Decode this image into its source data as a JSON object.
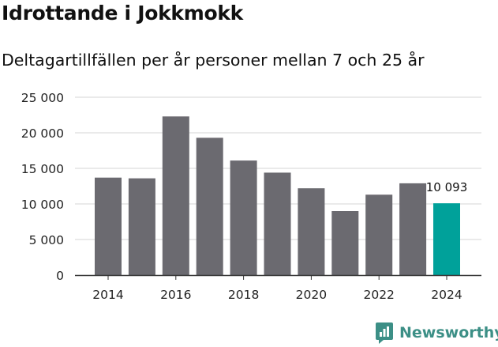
{
  "header": {
    "title": "Idrottande i Jokkmokk",
    "subtitle": "Deltagartillfällen per år personer mellan 7 och 25 år"
  },
  "brand": {
    "name": "Newsworthy"
  },
  "colors": {
    "bar": "#6b6a70",
    "highlight": "#00a19a",
    "grid": "#d6d6d6",
    "brand": "#3c8f86"
  },
  "chart_data": {
    "type": "bar",
    "title": "Idrottande i Jokkmokk",
    "subtitle": "Deltagartillfällen per år personer mellan 7 och 25 år",
    "categories": [
      "2014",
      "2015",
      "2016",
      "2017",
      "2018",
      "2019",
      "2020",
      "2021",
      "2022",
      "2023",
      "2024"
    ],
    "values": [
      13700,
      13600,
      22300,
      19300,
      16100,
      14400,
      12200,
      9000,
      11300,
      12900,
      10093
    ],
    "highlight_index": 10,
    "data_labels": [
      {
        "index": 10,
        "text": "10 093"
      }
    ],
    "x_tick_labels": [
      "2014",
      "2016",
      "2018",
      "2020",
      "2022",
      "2024"
    ],
    "y_ticks": [
      0,
      5000,
      10000,
      15000,
      20000,
      25000
    ],
    "y_tick_labels": [
      "0",
      "5 000",
      "10 000",
      "15 000",
      "20 000",
      "25 000"
    ],
    "ylim": [
      0,
      25000
    ],
    "grid": true,
    "xlabel": "",
    "ylabel": ""
  }
}
